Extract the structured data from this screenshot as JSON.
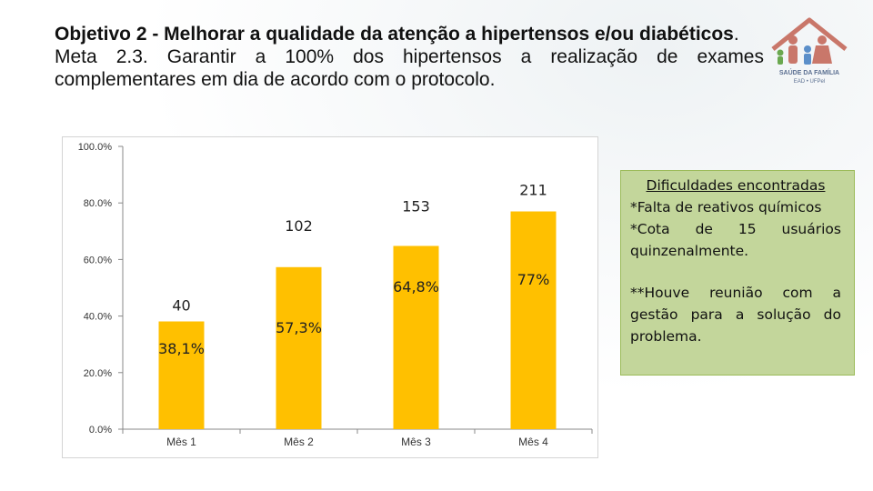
{
  "title": {
    "line_bold": "Objetivo 2 -  Melhorar a qualidade da atenção a hipertensos e/ou diabéticos",
    "line_bold_end": ".",
    "meta": "Meta 2.3. Garantir a 100% dos hipertensos a realização de exames complementares em dia de acordo com o protocolo."
  },
  "logo": {
    "icon": "family-icon",
    "text_line1": "SAÚDE DA FAMÍLIA",
    "text_line2": "EAD • UFPel",
    "color": "#d98a7a"
  },
  "notes": {
    "heading": "Dificuldades encontradas",
    "item1": "*Falta de reativos químicos",
    "item2": "*Cota de 15 usuários quinzenalmente.",
    "item3": "**Houve reunião com a gestão para a solução do problema."
  },
  "chart_data": {
    "type": "bar",
    "categories": [
      "Mês 1",
      "Mês 2",
      "Mês 3",
      "Mês 4"
    ],
    "values": [
      38.1,
      57.3,
      64.8,
      77.0
    ],
    "count_labels": [
      "40",
      "102",
      "153",
      "211"
    ],
    "percent_labels": [
      "38,1%",
      "57,3%",
      "64,8%",
      "77%"
    ],
    "ylim": [
      0,
      100
    ],
    "yticks": [
      "0.0%",
      "20.0%",
      "40.0%",
      "60.0%",
      "80.0%",
      "100.0%"
    ],
    "bar_color": "#ffc000",
    "title": "",
    "xlabel": "",
    "ylabel": "",
    "legend": "none",
    "grid": false
  }
}
